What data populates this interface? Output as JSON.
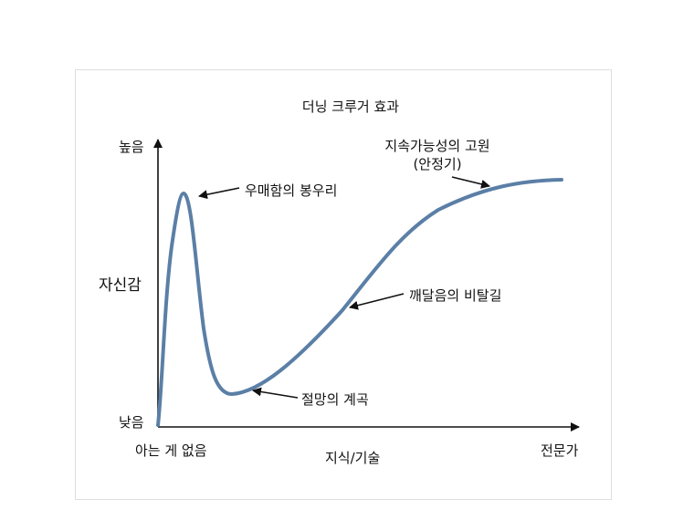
{
  "diagram": {
    "title": "더닝 크루거 효과",
    "y_axis": {
      "label": "자신감",
      "high_label": "높음",
      "low_label": "낮음"
    },
    "x_axis": {
      "label": "지식/기술",
      "start_label": "아는 게 없음",
      "end_label": "전문가"
    },
    "annotations": {
      "peak": "우매함의 봉우리",
      "valley": "절망의 계곡",
      "slope": "깨달음의 비탈길",
      "plateau_line1": "지속가능성의 고원",
      "plateau_line2": "(안정기)"
    },
    "colors": {
      "curve": "#5b7fa6",
      "axis": "#111111"
    }
  }
}
